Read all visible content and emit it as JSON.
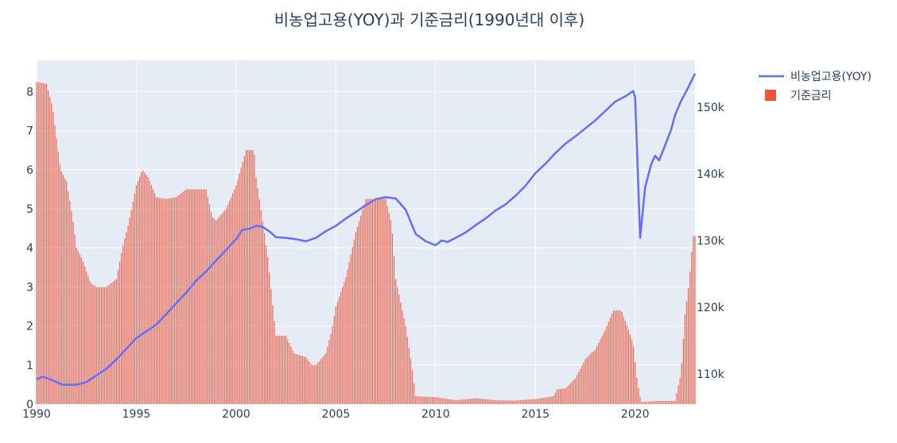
{
  "chart_data": {
    "type": "bar+line",
    "title": "비농업고용(YOY)과 기준금리(1990년대 이후)",
    "xlabel": "",
    "ylabel_left": "",
    "ylabel_right": "",
    "x_range": [
      1990,
      2023
    ],
    "x_ticks": [
      {
        "value": 1990,
        "label": "1990"
      },
      {
        "value": 1995,
        "label": "1995"
      },
      {
        "value": 2000,
        "label": "2000"
      },
      {
        "value": 2005,
        "label": "2005"
      },
      {
        "value": 2010,
        "label": "2010"
      },
      {
        "value": 2015,
        "label": "2015"
      },
      {
        "value": 2020,
        "label": "2020"
      }
    ],
    "y_left_range": [
      0,
      8.8
    ],
    "y_left_ticks": [
      {
        "value": 0,
        "label": "0"
      },
      {
        "value": 1,
        "label": "1"
      },
      {
        "value": 2,
        "label": "2"
      },
      {
        "value": 3,
        "label": "3"
      },
      {
        "value": 4,
        "label": "4"
      },
      {
        "value": 5,
        "label": "5"
      },
      {
        "value": 6,
        "label": "6"
      },
      {
        "value": 7,
        "label": "7"
      },
      {
        "value": 8,
        "label": "8"
      }
    ],
    "y_right_range": [
      105500,
      157000
    ],
    "y_right_ticks": [
      {
        "value": 110000,
        "label": "110k"
      },
      {
        "value": 120000,
        "label": "120k"
      },
      {
        "value": 130000,
        "label": "130k"
      },
      {
        "value": 140000,
        "label": "140k"
      },
      {
        "value": 150000,
        "label": "150k"
      }
    ],
    "grid": true,
    "legend_position": "top-right",
    "series": [
      {
        "name": "비농업고용(YOY)",
        "kind": "line",
        "axis": "right",
        "color": "#636efa",
        "points": [
          [
            1990.0,
            109.2
          ],
          [
            1990.3,
            109.6
          ],
          [
            1990.7,
            109.2
          ],
          [
            1991.0,
            108.8
          ],
          [
            1991.3,
            108.4
          ],
          [
            1992.0,
            108.4
          ],
          [
            1992.5,
            108.8
          ],
          [
            1993.0,
            109.8
          ],
          [
            1993.5,
            110.8
          ],
          [
            1994.0,
            112.2
          ],
          [
            1994.5,
            113.8
          ],
          [
            1995.0,
            115.4
          ],
          [
            1995.5,
            116.4
          ],
          [
            1996.0,
            117.4
          ],
          [
            1996.5,
            119.0
          ],
          [
            1997.0,
            120.6
          ],
          [
            1997.5,
            122.2
          ],
          [
            1998.0,
            124.0
          ],
          [
            1998.5,
            125.4
          ],
          [
            1999.0,
            127.0
          ],
          [
            1999.5,
            128.6
          ],
          [
            2000.0,
            130.2
          ],
          [
            2000.3,
            131.6
          ],
          [
            2000.7,
            131.8
          ],
          [
            2001.0,
            132.2
          ],
          [
            2001.3,
            132.1
          ],
          [
            2001.7,
            131.3
          ],
          [
            2002.0,
            130.5
          ],
          [
            2002.5,
            130.4
          ],
          [
            2003.0,
            130.2
          ],
          [
            2003.5,
            129.9
          ],
          [
            2004.0,
            130.4
          ],
          [
            2004.5,
            131.4
          ],
          [
            2005.0,
            132.2
          ],
          [
            2005.5,
            133.3
          ],
          [
            2006.0,
            134.3
          ],
          [
            2006.5,
            135.3
          ],
          [
            2007.0,
            136.2
          ],
          [
            2007.5,
            136.5
          ],
          [
            2008.0,
            136.3
          ],
          [
            2008.5,
            134.6
          ],
          [
            2009.0,
            131.0
          ],
          [
            2009.5,
            129.9
          ],
          [
            2010.0,
            129.3
          ],
          [
            2010.3,
            130.0
          ],
          [
            2010.6,
            129.8
          ],
          [
            2011.0,
            130.4
          ],
          [
            2011.5,
            131.2
          ],
          [
            2012.0,
            132.3
          ],
          [
            2012.5,
            133.3
          ],
          [
            2013.0,
            134.5
          ],
          [
            2013.5,
            135.4
          ],
          [
            2014.0,
            136.7
          ],
          [
            2014.5,
            138.2
          ],
          [
            2015.0,
            140.1
          ],
          [
            2015.5,
            141.5
          ],
          [
            2016.0,
            143.1
          ],
          [
            2016.5,
            144.5
          ],
          [
            2017.0,
            145.6
          ],
          [
            2017.5,
            146.8
          ],
          [
            2018.0,
            148.0
          ],
          [
            2018.5,
            149.4
          ],
          [
            2019.0,
            150.8
          ],
          [
            2019.5,
            151.6
          ],
          [
            2019.9,
            152.4
          ],
          [
            2020.0,
            151.5
          ],
          [
            2020.25,
            130.4
          ],
          [
            2020.5,
            138.0
          ],
          [
            2020.8,
            141.4
          ],
          [
            2021.0,
            142.7
          ],
          [
            2021.2,
            142.0
          ],
          [
            2021.5,
            144.3
          ],
          [
            2021.8,
            146.6
          ],
          [
            2022.0,
            148.8
          ],
          [
            2022.3,
            150.9
          ],
          [
            2022.6,
            152.6
          ],
          [
            2022.9,
            154.4
          ],
          [
            2023.0,
            155.0
          ]
        ]
      },
      {
        "name": "기준금리",
        "kind": "bar",
        "axis": "left",
        "color": "#ef553b",
        "points": [
          [
            1990.0,
            8.25
          ],
          [
            1990.5,
            8.2
          ],
          [
            1990.8,
            7.6
          ],
          [
            1991.0,
            6.8
          ],
          [
            1991.2,
            6.0
          ],
          [
            1991.5,
            5.7
          ],
          [
            1991.8,
            4.8
          ],
          [
            1992.0,
            4.0
          ],
          [
            1992.3,
            3.7
          ],
          [
            1992.7,
            3.1
          ],
          [
            1993.0,
            3.0
          ],
          [
            1993.5,
            3.0
          ],
          [
            1994.0,
            3.2
          ],
          [
            1994.3,
            4.0
          ],
          [
            1994.6,
            4.6
          ],
          [
            1995.0,
            5.6
          ],
          [
            1995.3,
            6.0
          ],
          [
            1995.6,
            5.8
          ],
          [
            1996.0,
            5.3
          ],
          [
            1996.5,
            5.25
          ],
          [
            1997.0,
            5.3
          ],
          [
            1997.5,
            5.5
          ],
          [
            1998.0,
            5.5
          ],
          [
            1998.5,
            5.5
          ],
          [
            1998.8,
            4.8
          ],
          [
            1999.0,
            4.7
          ],
          [
            1999.5,
            5.0
          ],
          [
            2000.0,
            5.6
          ],
          [
            2000.5,
            6.5
          ],
          [
            2000.9,
            6.5
          ],
          [
            2001.0,
            5.8
          ],
          [
            2001.3,
            4.8
          ],
          [
            2001.6,
            3.7
          ],
          [
            2001.9,
            2.2
          ],
          [
            2002.0,
            1.75
          ],
          [
            2002.5,
            1.75
          ],
          [
            2002.9,
            1.3
          ],
          [
            2003.5,
            1.2
          ],
          [
            2003.8,
            1.0
          ],
          [
            2004.0,
            1.0
          ],
          [
            2004.5,
            1.3
          ],
          [
            2004.8,
            1.9
          ],
          [
            2005.0,
            2.5
          ],
          [
            2005.5,
            3.25
          ],
          [
            2006.0,
            4.4
          ],
          [
            2006.5,
            5.25
          ],
          [
            2007.0,
            5.25
          ],
          [
            2007.5,
            5.25
          ],
          [
            2007.8,
            4.6
          ],
          [
            2008.0,
            3.2
          ],
          [
            2008.5,
            2.0
          ],
          [
            2008.8,
            1.0
          ],
          [
            2009.0,
            0.2
          ],
          [
            2010.0,
            0.18
          ],
          [
            2011.0,
            0.1
          ],
          [
            2012.0,
            0.15
          ],
          [
            2013.0,
            0.1
          ],
          [
            2014.0,
            0.09
          ],
          [
            2015.0,
            0.13
          ],
          [
            2015.9,
            0.2
          ],
          [
            2016.1,
            0.38
          ],
          [
            2016.5,
            0.4
          ],
          [
            2017.0,
            0.66
          ],
          [
            2017.5,
            1.15
          ],
          [
            2018.0,
            1.4
          ],
          [
            2018.5,
            1.9
          ],
          [
            2018.9,
            2.4
          ],
          [
            2019.3,
            2.4
          ],
          [
            2019.6,
            2.0
          ],
          [
            2019.9,
            1.55
          ],
          [
            2020.1,
            0.6
          ],
          [
            2020.3,
            0.05
          ],
          [
            2021.0,
            0.08
          ],
          [
            2022.0,
            0.08
          ],
          [
            2022.3,
            0.8
          ],
          [
            2022.5,
            2.3
          ],
          [
            2022.7,
            3.1
          ],
          [
            2022.9,
            4.3
          ],
          [
            2023.0,
            4.3
          ]
        ]
      }
    ]
  }
}
